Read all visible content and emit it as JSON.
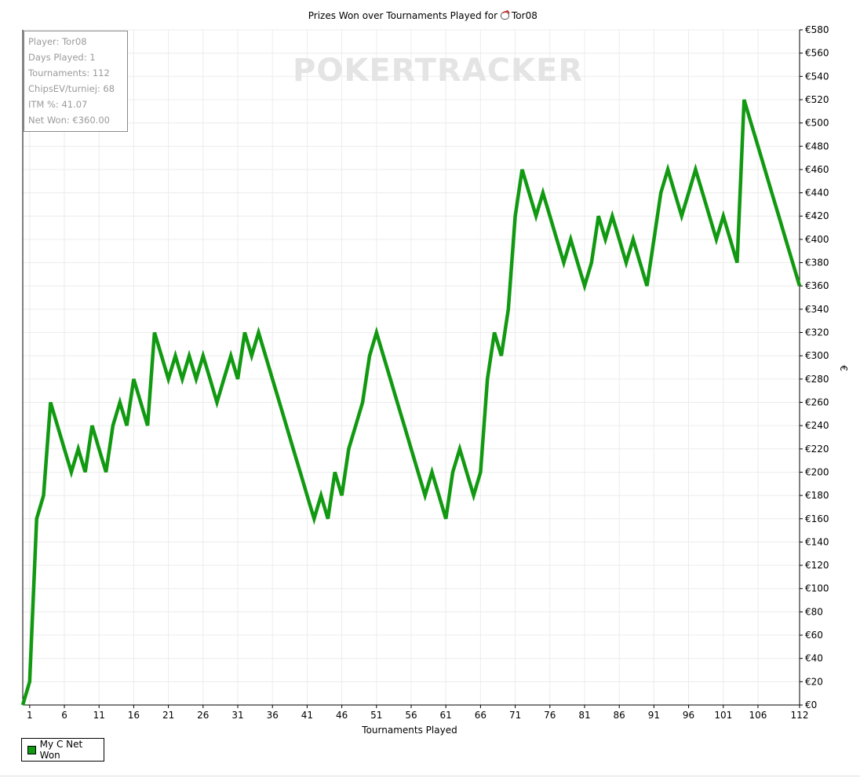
{
  "info_panel": {
    "lines": [
      "Player: Tor08",
      "Days Played: 1",
      "Tournaments: 112",
      "ChipsEV/turniej: 68",
      "ITM %: 41.07",
      "Net Won: €360.00"
    ]
  },
  "watermark": "POKERTRACKER",
  "colors": {
    "series_line": "#119911",
    "legend_swatch": "#119911"
  },
  "chart_data": {
    "type": "line",
    "title": "Prizes Won over Tournaments Played for",
    "title_player": "Tor08",
    "title_icon": "pokertracker-player-icon",
    "xlabel": "Tournaments Played",
    "ylabel": "€",
    "xlim": [
      0,
      112
    ],
    "ylim": [
      0,
      580
    ],
    "y_tick_step": 20,
    "y_tick_prefix": "€",
    "y_ticks_position": "right",
    "x_ticks": [
      1,
      6,
      11,
      16,
      21,
      26,
      31,
      36,
      41,
      46,
      51,
      56,
      61,
      66,
      71,
      76,
      81,
      86,
      91,
      96,
      101,
      106,
      112
    ],
    "grid": true,
    "legend_position": "bottom-left",
    "series": [
      {
        "name": "My C Net Won",
        "x": [
          0,
          1,
          2,
          3,
          4,
          5,
          6,
          7,
          8,
          9,
          10,
          11,
          12,
          13,
          14,
          15,
          16,
          17,
          18,
          19,
          20,
          21,
          22,
          23,
          24,
          25,
          26,
          27,
          28,
          29,
          30,
          31,
          32,
          33,
          34,
          35,
          36,
          37,
          38,
          39,
          40,
          41,
          42,
          43,
          44,
          45,
          46,
          47,
          48,
          49,
          50,
          51,
          52,
          53,
          54,
          55,
          56,
          57,
          58,
          59,
          60,
          61,
          62,
          63,
          64,
          65,
          66,
          67,
          68,
          69,
          70,
          71,
          72,
          73,
          74,
          75,
          76,
          77,
          78,
          79,
          80,
          81,
          82,
          83,
          84,
          85,
          86,
          87,
          88,
          89,
          90,
          91,
          92,
          93,
          94,
          95,
          96,
          97,
          98,
          99,
          100,
          101,
          102,
          103,
          104,
          105,
          106,
          107,
          108,
          109,
          110,
          111,
          112
        ],
        "y": [
          0,
          20,
          160,
          180,
          260,
          240,
          220,
          200,
          220,
          200,
          240,
          220,
          200,
          240,
          260,
          240,
          280,
          260,
          240,
          320,
          300,
          280,
          300,
          280,
          300,
          280,
          300,
          280,
          260,
          280,
          300,
          280,
          320,
          300,
          320,
          300,
          280,
          260,
          240,
          220,
          200,
          180,
          160,
          180,
          160,
          200,
          180,
          220,
          240,
          260,
          300,
          320,
          300,
          280,
          260,
          240,
          220,
          200,
          180,
          200,
          180,
          160,
          200,
          220,
          200,
          180,
          200,
          280,
          320,
          300,
          340,
          420,
          460,
          440,
          420,
          440,
          420,
          400,
          380,
          400,
          380,
          360,
          380,
          420,
          400,
          420,
          400,
          380,
          400,
          380,
          360,
          400,
          440,
          460,
          440,
          420,
          440,
          460,
          440,
          420,
          400,
          420,
          400,
          380,
          520,
          500,
          480,
          460,
          440,
          420,
          400,
          380,
          360
        ]
      }
    ]
  }
}
